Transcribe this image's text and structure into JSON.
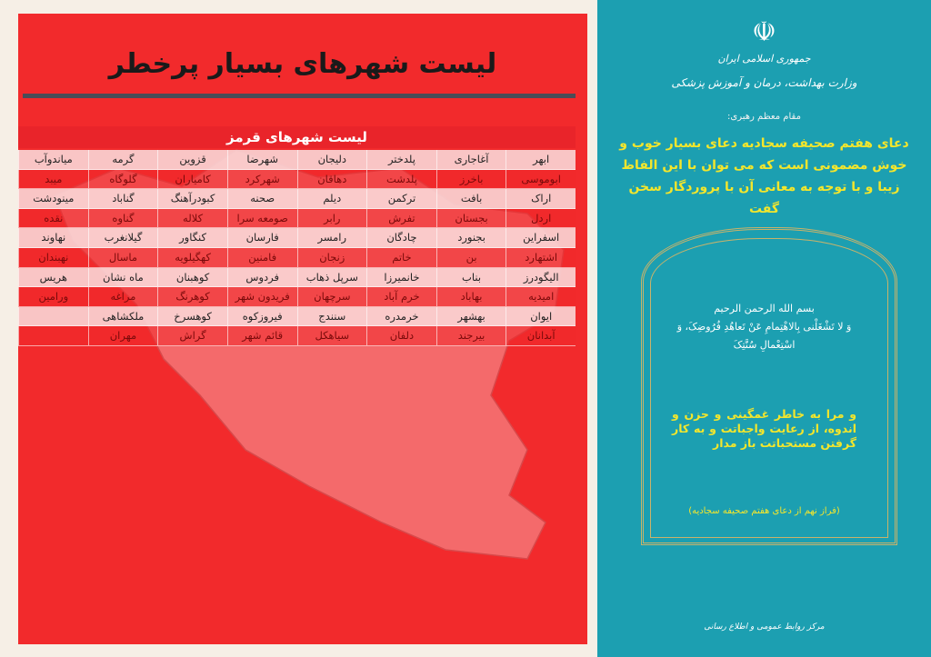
{
  "left": {
    "title": "لیست شهرهای بسیار پرخطر",
    "table_title": "لیست شهرهای قرمز",
    "rows": [
      [
        "ابهر",
        "آغاجاری",
        "پلدختر",
        "دلیجان",
        "شهرضا",
        "قزوین",
        "گرمه",
        "میاندوآب"
      ],
      [
        "ابوموسی",
        "باخرز",
        "پلدشت",
        "دهاقان",
        "شهرکرد",
        "کامیاران",
        "گلوگاه",
        "میبد"
      ],
      [
        "اراک",
        "بافت",
        "ترکمن",
        "دیلم",
        "صحنه",
        "کبودرآهنگ",
        "گناباد",
        "مینودشت"
      ],
      [
        "اردل",
        "بجستان",
        "تفرش",
        "رابر",
        "صومعه سرا",
        "کلاله",
        "گناوه",
        "نقده"
      ],
      [
        "اسفراین",
        "بجنورد",
        "چادگان",
        "رامسر",
        "فارسان",
        "کنگاور",
        "گیلانغرب",
        "نهاوند"
      ],
      [
        "اشتهارد",
        "بن",
        "خاتم",
        "زنجان",
        "فامنین",
        "کهگیلویه",
        "ماسال",
        "نهبندان"
      ],
      [
        "الیگودرز",
        "بناب",
        "خانمیرزا",
        "سرپل ذهاب",
        "فردوس",
        "کوهبنان",
        "ماه نشان",
        "هریس"
      ],
      [
        "امیدیه",
        "بهاباد",
        "خرم آباد",
        "سرچهان",
        "فریدون شهر",
        "کوهرنگ",
        "مراغه",
        "ورامین"
      ],
      [
        "ایوان",
        "بهشهر",
        "خرمدره",
        "سنندج",
        "فیروزکوه",
        "کوهسرخ",
        "ملکشاهی",
        ""
      ],
      [
        "آبدانان",
        "بیرجند",
        "دلفان",
        "سیاهکل",
        "قائم شهر",
        "گراش",
        "مهران",
        ""
      ]
    ]
  },
  "right": {
    "emblem_icon": "iran-emblem",
    "republic": "جمهوری اسلامی ایران",
    "ministry": "وزارت بهداشت، درمان و آموزش پزشکی",
    "lead": "مقام معظم رهبری:",
    "quote": "دعای هفتم صحیفه سجادیه دعای بسیار خوب و خوش مضمونی است که می توان با این الفاظ زیبا و با توجه به معانی آن با پروردگار سخن گفت",
    "arabic_1": "بسم الله الرحمن الرحیم",
    "arabic_2": "وَ لا تَشْغَلْنی بِالاهْتِمامِ عَنْ تَعاهُدِ فُرُوضِکَ، وَ اسْتِعْمالِ سُنَّتِکَ",
    "translation": "و مرا به خاطر غمگینی و حزن و اندوه، از رعایت واجباتت و به کار گرفتن مستحباتت باز مدار",
    "source": "(فراز نهم از دعای هفتم صحیفه سجادیه)",
    "footer": "مرکز روابط عمومی و اطلاع رسانی"
  },
  "colors": {
    "red": "#f22a2c",
    "teal": "#1c9fb1",
    "yellow": "#f3e62c"
  }
}
